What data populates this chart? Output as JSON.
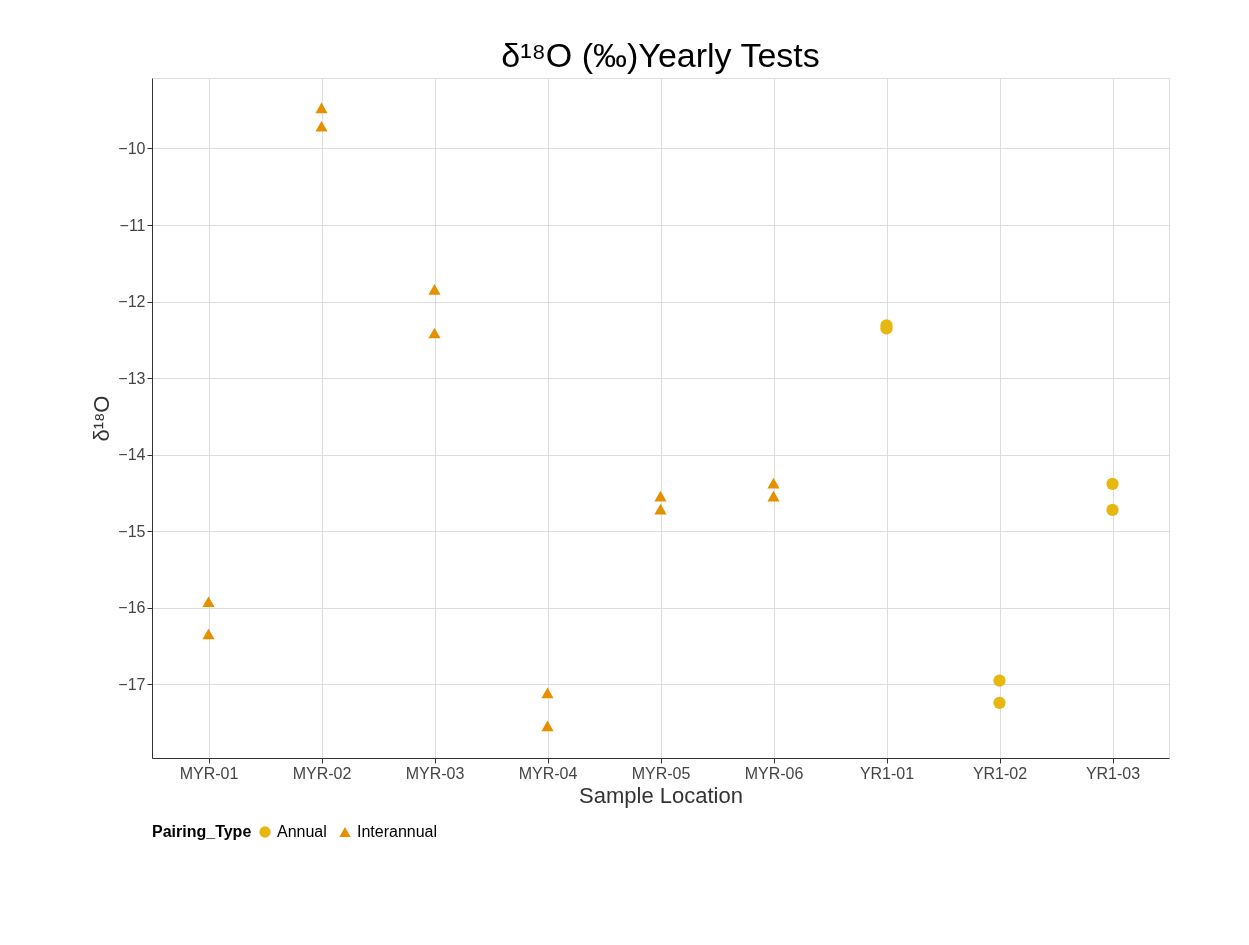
{
  "chart_data": {
    "type": "scatter",
    "title": "δ¹⁸O (‰)Yearly Tests",
    "xlabel": "Sample Location",
    "ylabel": "δ¹⁸O",
    "legend_title": "Pairing_Type",
    "categories": [
      "MYR-01",
      "MYR-02",
      "MYR-03",
      "MYR-04",
      "MYR-05",
      "MYR-06",
      "YR1-01",
      "YR1-02",
      "YR1-03"
    ],
    "series": [
      {
        "name": "Annual",
        "color": "#e6b80f",
        "marker": "circle",
        "x": [
          "YR1-01",
          "YR1-01",
          "YR1-02",
          "YR1-02",
          "YR1-03",
          "YR1-03"
        ],
        "values": [
          -12.31,
          -12.35,
          -16.95,
          -17.24,
          -14.38,
          -14.72
        ]
      },
      {
        "name": "Interannual",
        "color": "#e69000",
        "marker": "triangle",
        "x": [
          "MYR-01",
          "MYR-01",
          "MYR-02",
          "MYR-02",
          "MYR-03",
          "MYR-03",
          "MYR-04",
          "MYR-04",
          "MYR-05",
          "MYR-05",
          "MYR-06",
          "MYR-06"
        ],
        "values": [
          -15.92,
          -16.34,
          -9.47,
          -9.71,
          -11.84,
          -12.41,
          -17.11,
          -17.54,
          -14.54,
          -14.71,
          -14.37,
          -14.54
        ]
      }
    ],
    "ylim": [
      -17.96,
      -9.08
    ],
    "yticks": [
      -17,
      -16,
      -15,
      -14,
      -13,
      -12,
      -11,
      -10
    ],
    "grid": true,
    "legend": "bottom"
  }
}
